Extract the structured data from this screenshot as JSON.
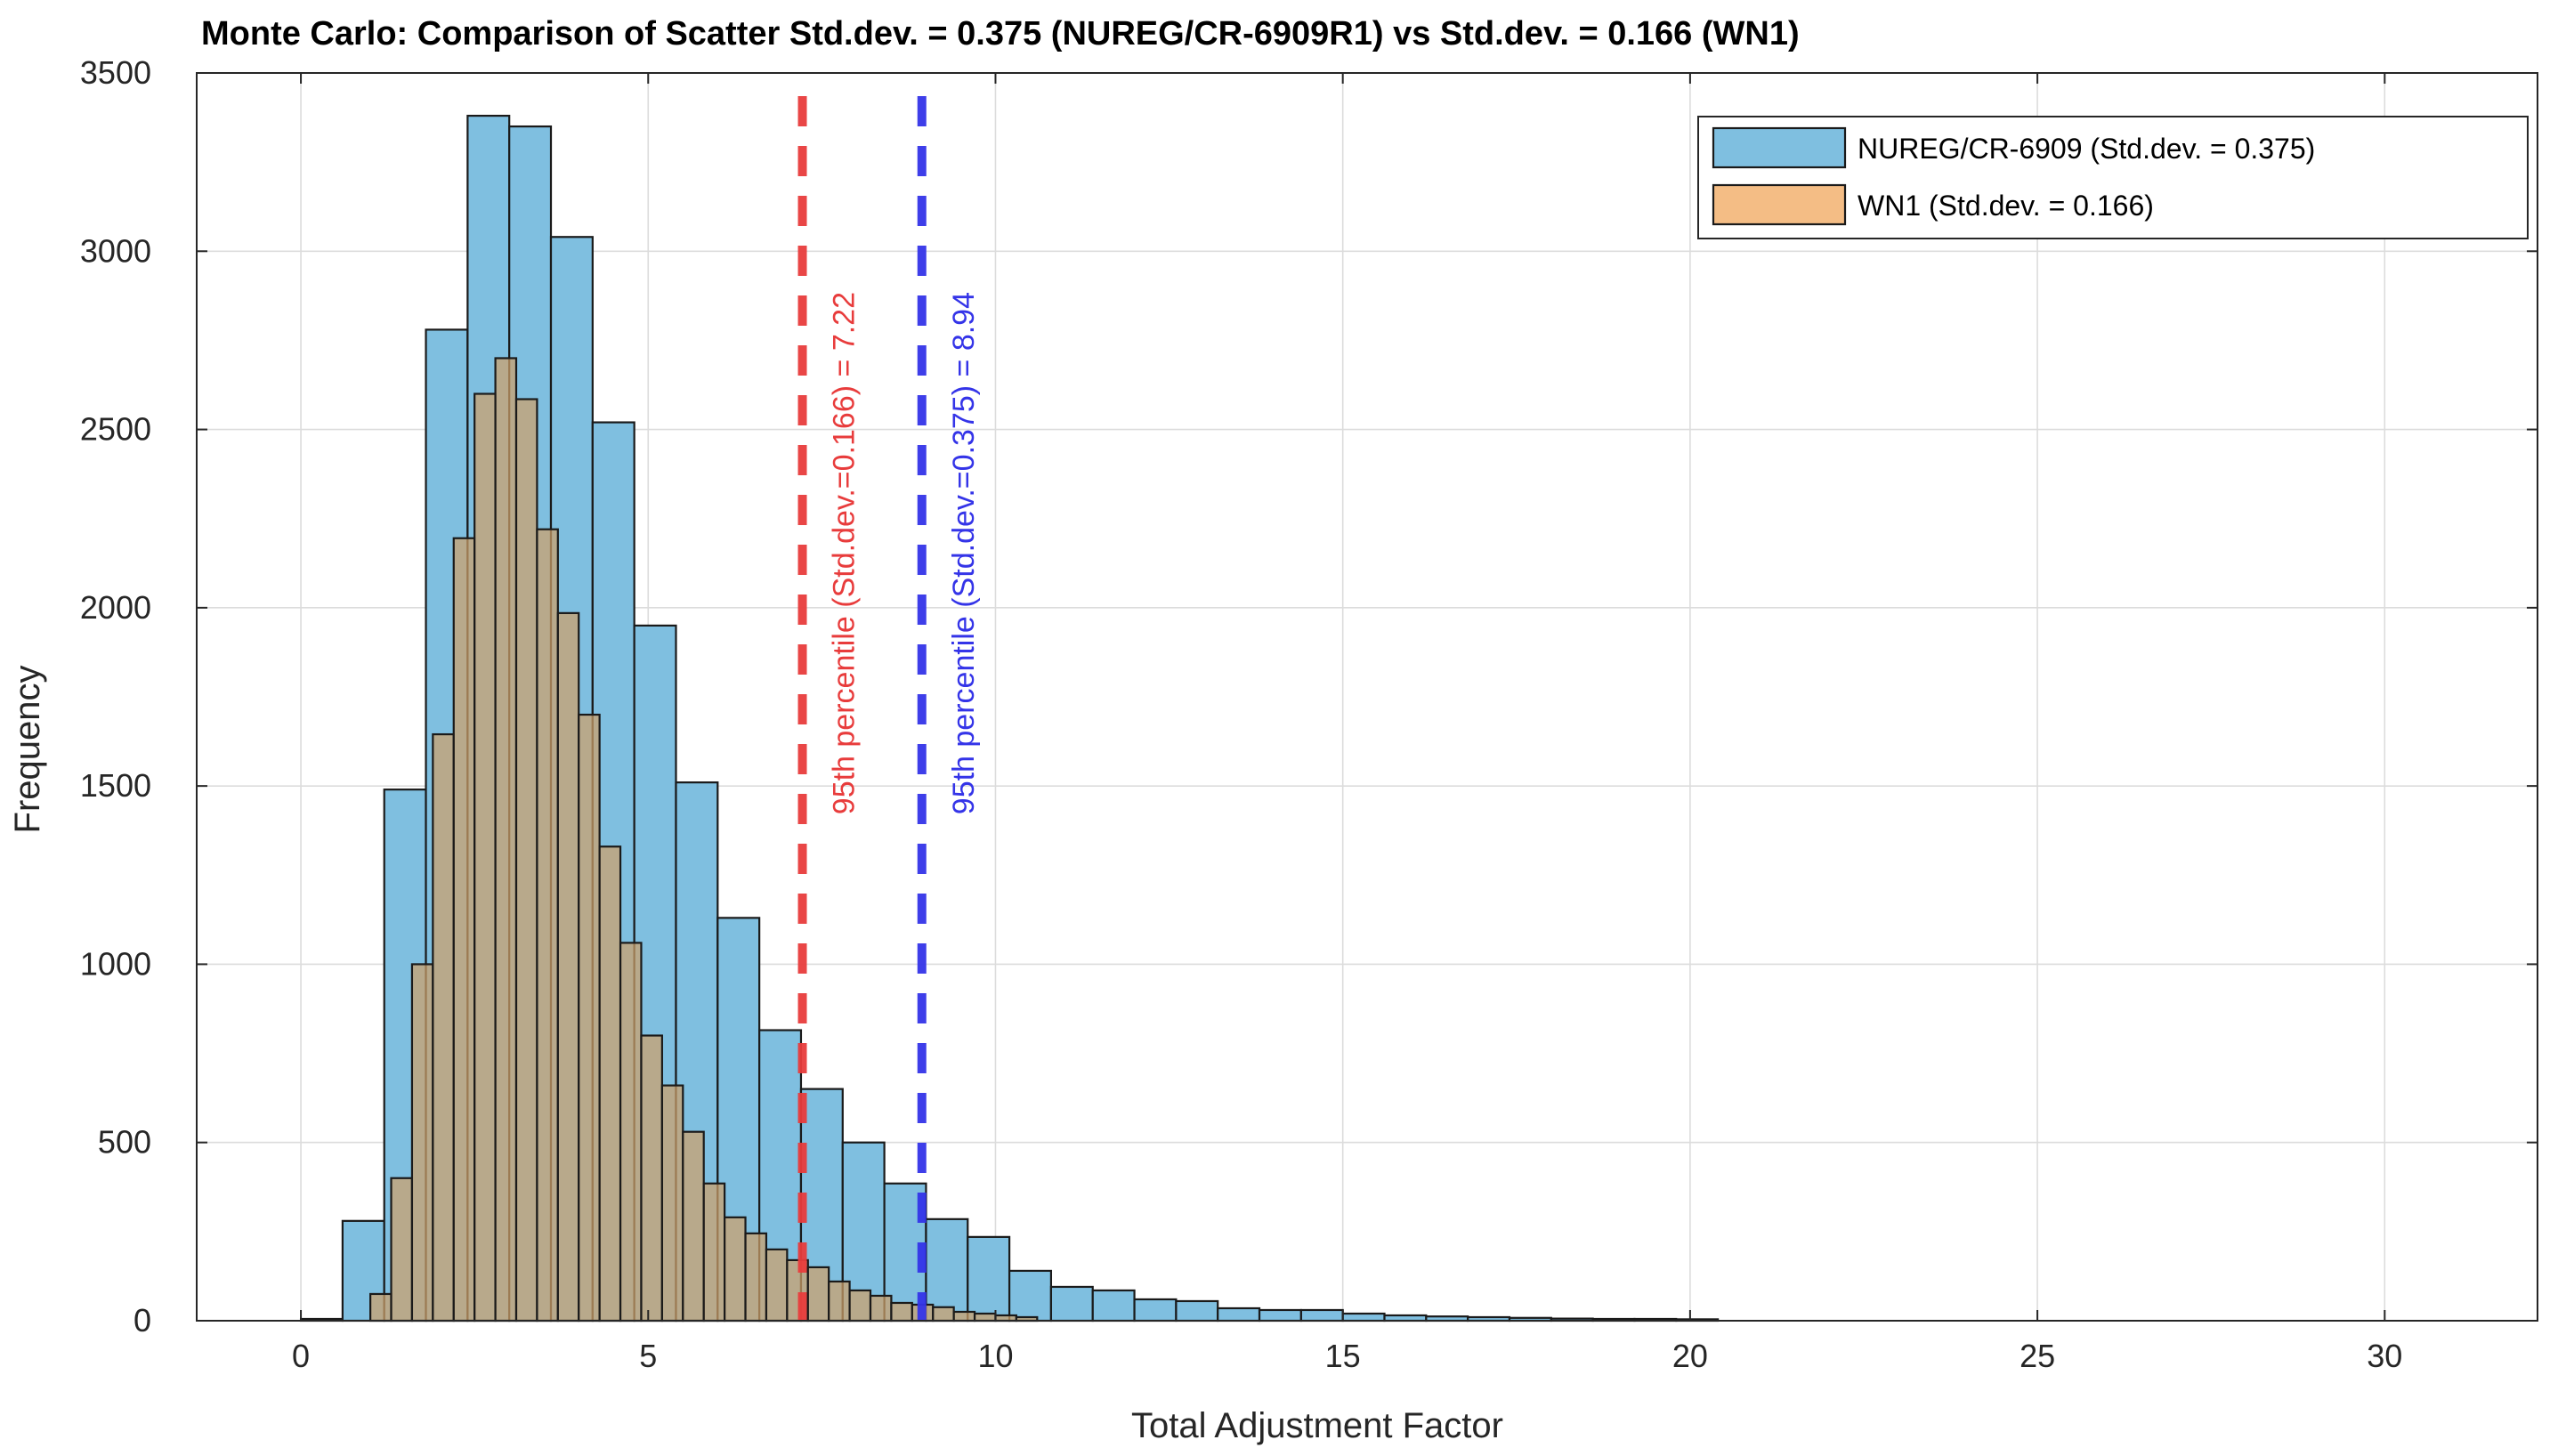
{
  "chart_data": {
    "type": "bar",
    "title": "Monte Carlo: Comparison of Scatter Std.dev. = 0.375 (NUREG/CR-6909R1) vs Std.dev. = 0.166 (WN1)",
    "xlabel": "Total Adjustment Factor",
    "ylabel": "Frequency",
    "xlim": [
      -1.5,
      32.2
    ],
    "ylim": [
      0,
      3500
    ],
    "xticks": [
      0,
      5,
      10,
      15,
      20,
      25,
      30
    ],
    "yticks": [
      0,
      500,
      1000,
      1500,
      2000,
      2500,
      3000,
      3500
    ],
    "grid": true,
    "series": [
      {
        "name": "NUREG/CR-6909 (Std.dev. = 0.375)",
        "color": "#7fbfe0",
        "bin_start": 0.0,
        "bin_width": 0.6,
        "values": [
          5,
          280,
          1490,
          2780,
          3380,
          3350,
          3040,
          2520,
          1950,
          1510,
          1130,
          815,
          650,
          500,
          385,
          285,
          235,
          140,
          95,
          85,
          60,
          55,
          35,
          30,
          30,
          20,
          15,
          12,
          10,
          8,
          6,
          5,
          5,
          4
        ]
      },
      {
        "name": "WN1 (Std.dev. = 0.166)",
        "color": "#f4bd85",
        "bin_start": 1.0,
        "bin_width": 0.3,
        "values": [
          75,
          400,
          1000,
          1645,
          2195,
          2600,
          2700,
          2585,
          2220,
          1985,
          1700,
          1330,
          1060,
          800,
          660,
          530,
          385,
          290,
          245,
          200,
          170,
          150,
          110,
          85,
          70,
          50,
          45,
          38,
          25,
          20,
          15,
          10
        ]
      }
    ],
    "vlines": [
      {
        "x": 7.22,
        "label": "95th percentile (Std.dev.=0.166) = 7.22",
        "color": "#e83c3c"
      },
      {
        "x": 8.94,
        "label": "95th percentile (Std.dev.=0.375) = 8.94",
        "color": "#3434e8"
      }
    ],
    "legend": {
      "placement": "top-right",
      "entries": [
        "NUREG/CR-6909 (Std.dev. = 0.375)",
        "WN1 (Std.dev. = 0.166)"
      ]
    }
  }
}
